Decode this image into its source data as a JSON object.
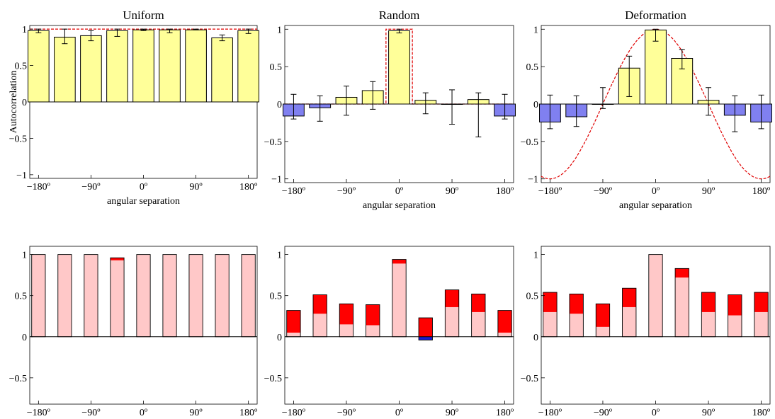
{
  "colors": {
    "positive_bar": "#ffff99",
    "negative_bar": "#8080f0",
    "model_line": "#e00000",
    "stack_base": "#ffc8c8",
    "stack_top": "#ff0000",
    "stack_negative": "#1a1ad0"
  },
  "chart_data": [
    {
      "panel": "top-left",
      "type": "bar",
      "title": "Uniform",
      "ylabel": "Autocorrelation",
      "xlabel": "angular separation",
      "x": [
        -180,
        -135,
        -90,
        -45,
        0,
        45,
        90,
        135,
        180
      ],
      "xticks": [
        "−180º",
        "−90º",
        "0º",
        "90º",
        "180º"
      ],
      "yticks": [
        "−1",
        "−0.5",
        "0",
        "0.5",
        "1"
      ],
      "xlim": [
        -195,
        195
      ],
      "ylim": [
        -1.05,
        1.05
      ],
      "values": [
        0.98,
        0.89,
        0.91,
        0.98,
        0.99,
        0.99,
        0.99,
        0.88,
        0.98
      ],
      "errors": [
        [
          0.95,
          1.0
        ],
        [
          0.8,
          1.0
        ],
        [
          0.84,
          0.98
        ],
        [
          0.9,
          1.0
        ],
        [
          0.98,
          1.0
        ],
        [
          0.95,
          1.0
        ],
        [
          0.99,
          1.0
        ],
        [
          0.84,
          0.92
        ],
        [
          0.94,
          1.0
        ]
      ],
      "model": {
        "type": "constant",
        "value": 1.0
      }
    },
    {
      "panel": "top-middle",
      "type": "bar",
      "title": "Random",
      "ylabel": "",
      "xlabel": "angular separation",
      "x": [
        -180,
        -135,
        -90,
        -45,
        0,
        45,
        90,
        135,
        180
      ],
      "xticks": [
        "−180º",
        "−90º",
        "0º",
        "90º",
        "180º"
      ],
      "yticks": [
        "−1",
        "−0.5",
        "0",
        "0.5",
        "1"
      ],
      "xlim": [
        -195,
        195
      ],
      "ylim": [
        -1.05,
        1.05
      ],
      "values": [
        -0.16,
        -0.05,
        0.09,
        0.18,
        0.98,
        0.05,
        0.0,
        0.06,
        -0.16
      ],
      "errors": [
        [
          -0.2,
          0.13
        ],
        [
          -0.23,
          0.11
        ],
        [
          -0.15,
          0.24
        ],
        [
          -0.07,
          0.3
        ],
        [
          0.95,
          1.0
        ],
        [
          -0.13,
          0.15
        ],
        [
          -0.27,
          0.19
        ],
        [
          -0.44,
          0.15
        ],
        [
          -0.2,
          0.13
        ]
      ],
      "model": {
        "type": "box",
        "height": 1.0,
        "half_width": 22.5
      }
    },
    {
      "panel": "top-right",
      "type": "bar",
      "title": "Deformation",
      "ylabel": "",
      "xlabel": "angular separation",
      "x": [
        -180,
        -135,
        -90,
        -45,
        0,
        45,
        90,
        135,
        180
      ],
      "xticks": [
        "−180º",
        "−90º",
        "0º",
        "90º",
        "180º"
      ],
      "yticks": [
        "−1",
        "−0.5",
        "0",
        "0.5",
        "1"
      ],
      "xlim": [
        -195,
        195
      ],
      "ylim": [
        -1.05,
        1.05
      ],
      "values": [
        -0.24,
        -0.17,
        0.0,
        0.48,
        0.99,
        0.61,
        0.05,
        -0.15,
        -0.24
      ],
      "errors": [
        [
          -0.33,
          0.12
        ],
        [
          -0.3,
          0.11
        ],
        [
          -0.06,
          0.22
        ],
        [
          0.1,
          0.64
        ],
        [
          0.84,
          1.0
        ],
        [
          0.47,
          0.73
        ],
        [
          -0.15,
          0.22
        ],
        [
          -0.37,
          0.11
        ],
        [
          -0.33,
          0.12
        ]
      ],
      "model": {
        "type": "cosine"
      }
    },
    {
      "panel": "bottom-left",
      "type": "bar",
      "stacked": true,
      "title": "",
      "ylabel": "",
      "xlabel": "angular separation",
      "x": [
        -180,
        -135,
        -90,
        -45,
        0,
        45,
        90,
        135,
        180
      ],
      "xticks": [
        "−180º",
        "−90º",
        "0º",
        "90º",
        "180º"
      ],
      "yticks": [
        "−0.5",
        "0",
        "0.5",
        "1"
      ],
      "xlim": [
        -195,
        195
      ],
      "ylim": [
        -0.82,
        1.1
      ],
      "series": [
        {
          "values": [
            1.0,
            1.0,
            1.0,
            0.93,
            1.0,
            1.0,
            1.0,
            1.0,
            1.0
          ]
        },
        {
          "values": [
            0.0,
            0.0,
            0.0,
            0.03,
            0.0,
            0.0,
            0.0,
            0.0,
            0.0
          ]
        },
        {
          "values": [
            0,
            0,
            0,
            0,
            0,
            0,
            0,
            0,
            0
          ]
        }
      ]
    },
    {
      "panel": "bottom-middle",
      "type": "bar",
      "stacked": true,
      "title": "",
      "ylabel": "",
      "xlabel": "angular separation",
      "x": [
        -180,
        -135,
        -90,
        -45,
        0,
        45,
        90,
        135,
        180
      ],
      "xticks": [
        "−180º",
        "−90º",
        "0º",
        "90º",
        "180º"
      ],
      "yticks": [
        "−0.5",
        "0",
        "0.5",
        "1"
      ],
      "xlim": [
        -195,
        195
      ],
      "ylim": [
        -0.82,
        1.1
      ],
      "series": [
        {
          "values": [
            0.05,
            0.28,
            0.15,
            0.14,
            0.89,
            0.0,
            0.36,
            0.3,
            0.05
          ]
        },
        {
          "values": [
            0.27,
            0.23,
            0.25,
            0.25,
            0.05,
            0.23,
            0.21,
            0.22,
            0.27
          ]
        },
        {
          "values": [
            0,
            0,
            0,
            0,
            0,
            -0.04,
            0,
            0,
            0
          ]
        }
      ]
    },
    {
      "panel": "bottom-right",
      "type": "bar",
      "stacked": true,
      "title": "",
      "ylabel": "",
      "xlabel": "angular separation",
      "x": [
        -180,
        -135,
        -90,
        -45,
        0,
        45,
        90,
        135,
        180
      ],
      "xticks": [
        "−180º",
        "−90º",
        "0º",
        "90º",
        "180º"
      ],
      "yticks": [
        "−0.5",
        "0",
        "0.5",
        "1"
      ],
      "xlim": [
        -195,
        195
      ],
      "ylim": [
        -0.82,
        1.1
      ],
      "series": [
        {
          "values": [
            0.3,
            0.28,
            0.12,
            0.36,
            1.0,
            0.72,
            0.3,
            0.26,
            0.3
          ]
        },
        {
          "values": [
            0.24,
            0.24,
            0.28,
            0.23,
            0.0,
            0.11,
            0.24,
            0.25,
            0.24
          ]
        },
        {
          "values": [
            0,
            0,
            0,
            0,
            0,
            0,
            0,
            0,
            0
          ]
        }
      ]
    }
  ]
}
